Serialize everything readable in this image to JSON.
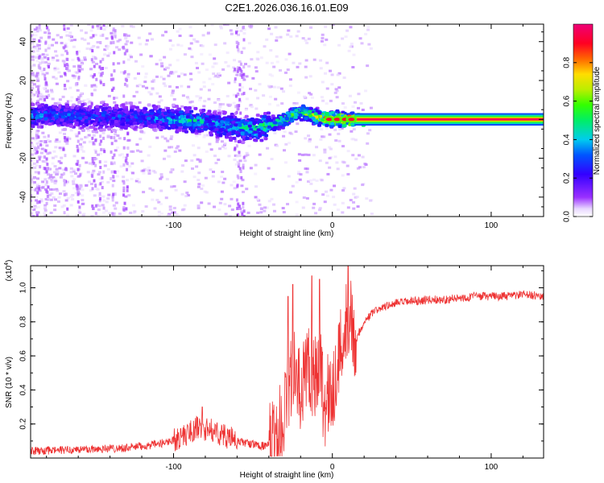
{
  "title": "C2E1.2026.036.16.01.E09",
  "chart_data": [
    {
      "type": "heatmap",
      "name": "spectrogram",
      "xlabel": "Height of straight line (km)",
      "ylabel": "Frequency (Hz)",
      "xlim": [
        -190,
        133
      ],
      "ylim": [
        -50,
        49
      ],
      "xticks": [
        -100,
        0,
        100
      ],
      "xtick_labels": [
        "-100",
        "0",
        "100"
      ],
      "yticks": [
        -40,
        -20,
        0,
        20,
        40
      ],
      "ytick_labels": [
        "-40",
        "-20",
        "0",
        "20",
        "40"
      ],
      "colorbar": {
        "label": "Normalized spectral amplitude",
        "range": [
          0,
          1
        ],
        "ticks": [
          0.0,
          0.2,
          0.4,
          0.6,
          0.8
        ],
        "tick_labels": [
          "0.0",
          "0.2",
          "0.4",
          "0.6",
          "0.8"
        ]
      },
      "ridge": {
        "description_points": [
          {
            "x": -190,
            "f": 2,
            "amp": 0.35
          },
          {
            "x": -120,
            "f": 1,
            "amp": 0.3
          },
          {
            "x": -95,
            "f": 0,
            "amp": 0.45
          },
          {
            "x": -70,
            "f": -3,
            "amp": 0.4
          },
          {
            "x": -50,
            "f": -5,
            "amp": 0.5
          },
          {
            "x": -35,
            "f": -2,
            "amp": 0.55
          },
          {
            "x": -20,
            "f": 4,
            "amp": 0.6
          },
          {
            "x": -10,
            "f": 1,
            "amp": 0.7
          },
          {
            "x": 0,
            "f": 0,
            "amp": 0.9
          },
          {
            "x": 15,
            "f": 0,
            "amp": 0.98
          },
          {
            "x": 133,
            "f": 0,
            "amp": 0.98
          }
        ]
      }
    },
    {
      "type": "line",
      "name": "snr",
      "xlabel": "Height of straight line (km)",
      "ylabel": "SNR (10 * v/v)",
      "multiplier": "(x10",
      "multiplier_exp": "4",
      "multiplier_close": ")",
      "xlim": [
        -190,
        133
      ],
      "ylim": [
        0.0,
        1.13
      ],
      "xticks": [
        -100,
        0,
        100
      ],
      "xtick_labels": [
        "-100",
        "0",
        "100"
      ],
      "yticks": [
        0.2,
        0.4,
        0.6,
        0.8,
        1.0
      ],
      "ytick_labels": [
        "0.2",
        "0.4",
        "0.6",
        "0.8",
        "1.0"
      ],
      "color": "#ee3333",
      "series": [
        {
          "name": "SNR",
          "x": [
            -190,
            -160,
            -130,
            -110,
            -95,
            -85,
            -75,
            -60,
            -50,
            -42,
            -35,
            -30,
            -25,
            -20,
            -15,
            -12,
            -8,
            -5,
            0,
            5,
            10,
            15,
            20,
            25,
            30,
            40,
            50,
            60,
            70,
            80,
            90,
            100,
            110,
            120,
            133
          ],
          "y": [
            0.04,
            0.05,
            0.06,
            0.08,
            0.12,
            0.18,
            0.16,
            0.1,
            0.08,
            0.07,
            0.07,
            0.3,
            0.55,
            0.35,
            0.6,
            0.45,
            0.6,
            0.3,
            0.4,
            0.62,
            0.85,
            0.7,
            0.8,
            0.85,
            0.88,
            0.91,
            0.92,
            0.93,
            0.93,
            0.94,
            0.95,
            0.95,
            0.95,
            0.96,
            0.95
          ],
          "spike_peaks": [
            {
              "x": -28,
              "y": 0.95
            },
            {
              "x": -25,
              "y": 1.02
            },
            {
              "x": -13,
              "y": 1.07
            },
            {
              "x": -8,
              "y": 1.05
            },
            {
              "x": 10,
              "y": 1.13
            },
            {
              "x": -82,
              "y": 0.3
            }
          ]
        }
      ]
    }
  ]
}
